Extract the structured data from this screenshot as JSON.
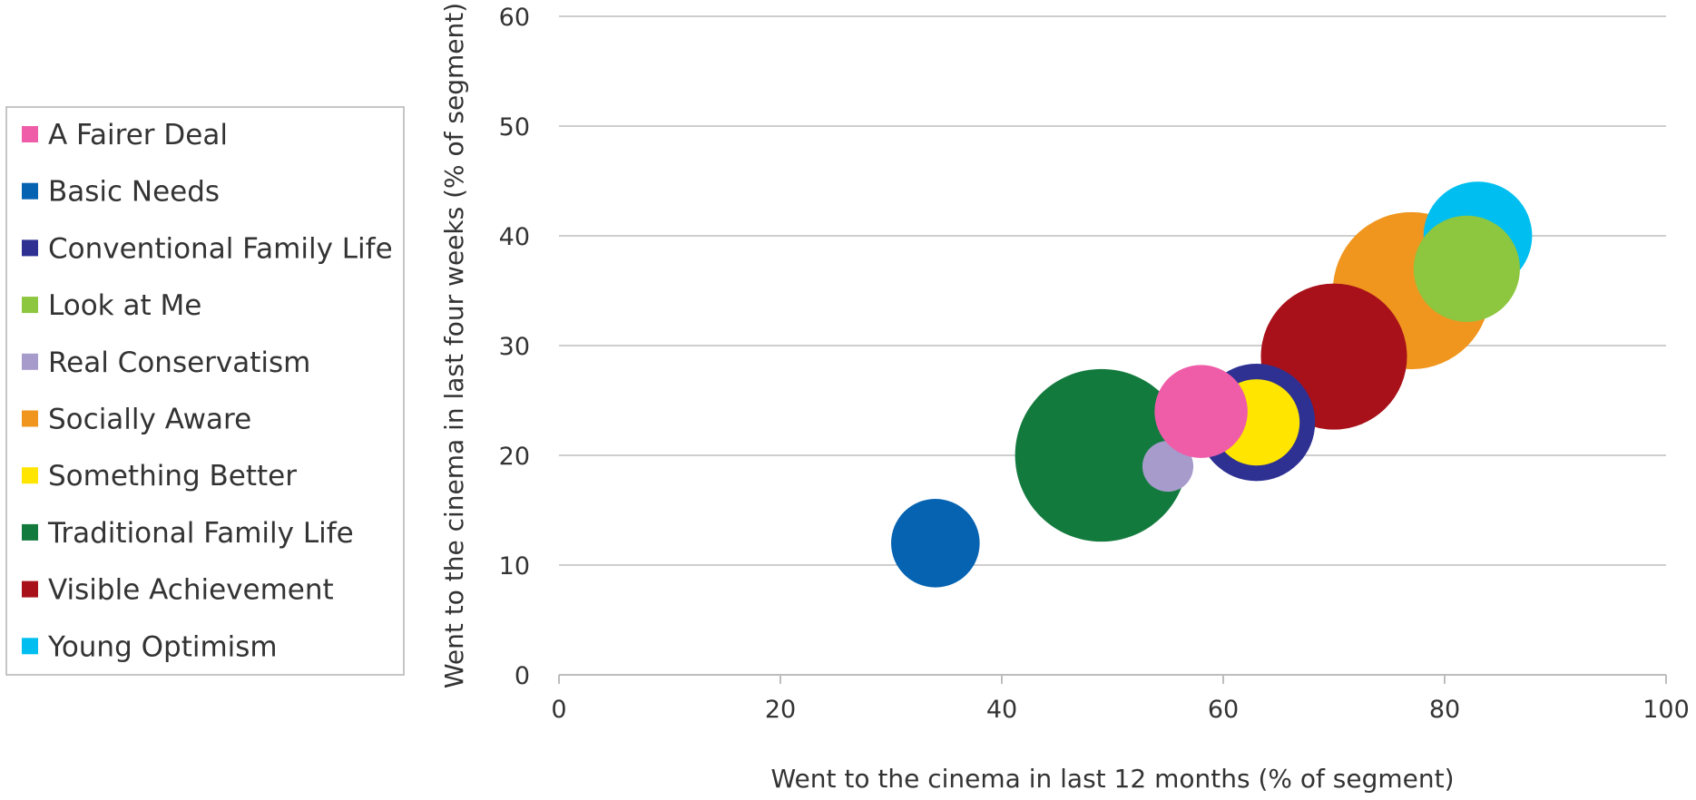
{
  "chart_data": {
    "type": "bubble",
    "xlabel": "Went to the cinema in last 12 months (% of segment)",
    "ylabel": "Went to the cinema in last four weeks (% of segment)",
    "xlim": [
      0,
      100
    ],
    "ylim": [
      0,
      60
    ],
    "xticks": [
      "0",
      "20",
      "40",
      "60",
      "80",
      "100"
    ],
    "yticks": [
      "0",
      "10",
      "20",
      "30",
      "40",
      "50",
      "60"
    ],
    "grid": "horizontal",
    "legend_position": "left",
    "series": [
      {
        "name": "A Fairer Deal",
        "color": "#EF5DA8",
        "x": 58,
        "y": 24,
        "size": 4.2
      },
      {
        "name": "Basic Needs",
        "color": "#0563B1",
        "x": 34,
        "y": 12,
        "size": 4.0
      },
      {
        "name": "Conventional Family Life",
        "color": "#2E3192",
        "x": 63,
        "y": 23,
        "size": 5.3
      },
      {
        "name": "Look at Me",
        "color": "#8DC63F",
        "x": 82,
        "y": 37,
        "size": 4.8
      },
      {
        "name": "Real Conservatism",
        "color": "#A69BCB",
        "x": 55,
        "y": 19,
        "size": 2.3
      },
      {
        "name": "Socially Aware",
        "color": "#F0961F",
        "x": 77,
        "y": 35,
        "size": 7.1
      },
      {
        "name": "Something Better",
        "color": "#FFE500",
        "x": 63,
        "y": 23,
        "size": 3.9
      },
      {
        "name": "Traditional Family Life",
        "color": "#137A3E",
        "x": 49,
        "y": 20,
        "size": 7.8
      },
      {
        "name": "Visible Achievement",
        "color": "#A8111A",
        "x": 70,
        "y": 29,
        "size": 6.6
      },
      {
        "name": "Young Optimism",
        "color": "#00BFF0",
        "x": 83,
        "y": 40,
        "size": 4.9
      }
    ],
    "draw_order": [
      7,
      5,
      9,
      3,
      8,
      2,
      6,
      4,
      0,
      1
    ]
  }
}
